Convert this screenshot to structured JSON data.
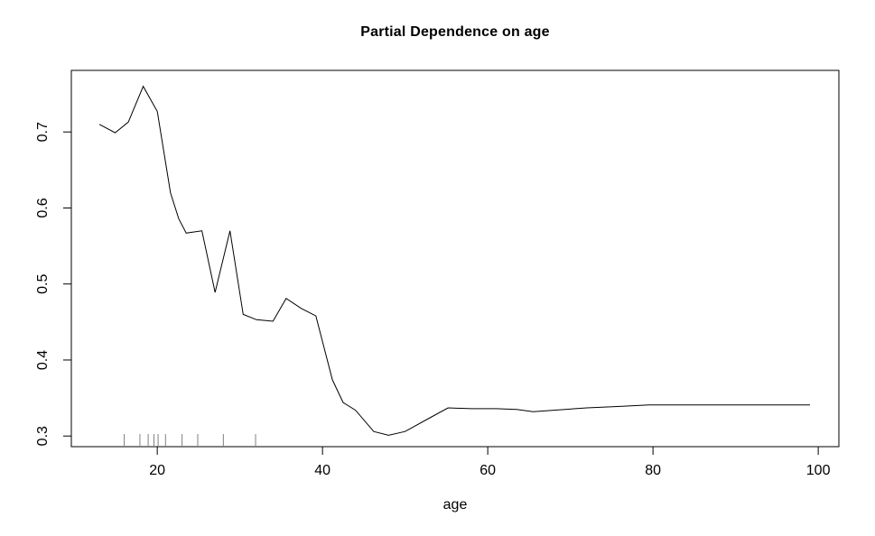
{
  "chart_data": {
    "type": "line",
    "title": "Partial Dependence on age",
    "xlabel": "age",
    "ylabel": "",
    "x_ticks": [
      20,
      40,
      60,
      80,
      100
    ],
    "y_ticks": [
      0.3,
      0.4,
      0.5,
      0.6,
      0.7
    ],
    "xlim": [
      9.6,
      102.5
    ],
    "ylim": [
      0.286,
      0.781
    ],
    "grid": false,
    "legend": "none",
    "series": [
      {
        "name": "partial-dependence-of-age",
        "x": [
          13,
          14.9,
          16.5,
          18.3,
          20,
          21.6,
          22.6,
          23.5,
          25.4,
          27,
          28.8,
          30.4,
          32,
          34,
          35.6,
          37.4,
          39.2,
          41.2,
          42.5,
          44,
          46.2,
          48,
          50,
          53,
          55.2,
          58,
          61,
          63.5,
          65.5,
          68,
          72,
          76,
          79.5,
          85,
          92,
          99
        ],
        "y": [
          0.71,
          0.699,
          0.713,
          0.76,
          0.727,
          0.62,
          0.586,
          0.567,
          0.57,
          0.489,
          0.57,
          0.46,
          0.453,
          0.451,
          0.481,
          0.468,
          0.458,
          0.374,
          0.344,
          0.334,
          0.306,
          0.301,
          0.306,
          0.324,
          0.337,
          0.336,
          0.336,
          0.335,
          0.332,
          0.334,
          0.337,
          0.339,
          0.341,
          0.341,
          0.341,
          0.341
        ]
      }
    ],
    "rug_x": [
      16,
      17.9,
      18.9,
      19.6,
      20.1,
      21,
      23,
      24.9,
      28,
      31.9
    ],
    "colors": {
      "line": "#000000",
      "axis": "#000000",
      "text": "#000000",
      "rug": "#808080",
      "background": "#ffffff"
    }
  }
}
